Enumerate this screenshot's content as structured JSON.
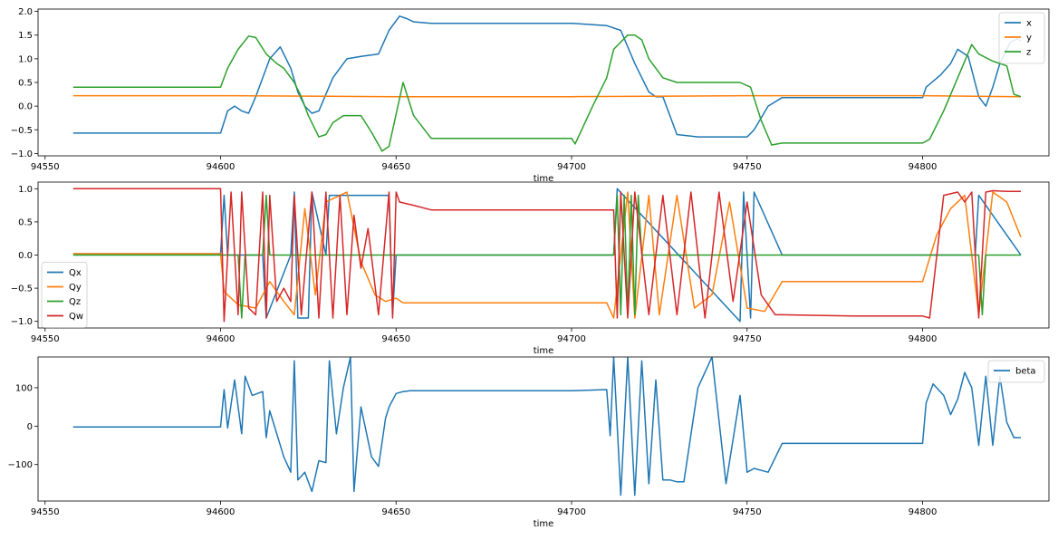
{
  "chart_data": [
    {
      "type": "line",
      "xlabel": "time",
      "ylabel": "",
      "xlim": [
        94548,
        94836
      ],
      "ylim": [
        -1.05,
        2.05
      ],
      "xticks": [
        94550,
        94600,
        94650,
        94700,
        94750,
        94800
      ],
      "xtick_labels": [
        "94550",
        "94600",
        "94650",
        "94700",
        "94750",
        "94800"
      ],
      "yticks": [
        -1.0,
        -0.5,
        0.0,
        0.5,
        1.0,
        1.5,
        2.0
      ],
      "ytick_labels": [
        "−1.0",
        "−0.5",
        "0.0",
        "0.5",
        "1.0",
        "1.5",
        "2.0"
      ],
      "legend_position": "top-right",
      "grid": false,
      "series": [
        {
          "name": "x",
          "color": "#1f77b4",
          "x": [
            94558,
            94600,
            94602,
            94604,
            94606,
            94608,
            94610,
            94614,
            94617,
            94620,
            94622,
            94624,
            94626,
            94628,
            94632,
            94636,
            94640,
            94645,
            94648,
            94651,
            94653,
            94655,
            94660,
            94680,
            94700,
            94710,
            94714,
            94718,
            94722,
            94724,
            94726,
            94730,
            94736,
            94742,
            94750,
            94752,
            94756,
            94760,
            94780,
            94800,
            94801,
            94805,
            94808,
            94810,
            94813,
            94816,
            94818,
            94820,
            94822,
            94825,
            94827,
            94828
          ],
          "y": [
            -0.57,
            -0.57,
            -0.1,
            0.0,
            -0.1,
            -0.15,
            0.2,
            1.0,
            1.25,
            0.8,
            0.3,
            0.0,
            -0.15,
            -0.1,
            0.6,
            1.0,
            1.05,
            1.1,
            1.6,
            1.9,
            1.85,
            1.78,
            1.75,
            1.75,
            1.75,
            1.7,
            1.6,
            0.9,
            0.3,
            0.2,
            0.2,
            -0.6,
            -0.65,
            -0.65,
            -0.65,
            -0.5,
            0.0,
            0.18,
            0.18,
            0.18,
            0.4,
            0.65,
            0.9,
            1.2,
            1.05,
            0.2,
            0.0,
            0.4,
            0.9,
            1.35,
            1.42,
            1.38
          ]
        },
        {
          "name": "y",
          "color": "#ff7f0e",
          "x": [
            94558,
            94600,
            94650,
            94700,
            94750,
            94800,
            94828
          ],
          "y": [
            0.22,
            0.22,
            0.2,
            0.2,
            0.22,
            0.22,
            0.2
          ]
        },
        {
          "name": "z",
          "color": "#2ca02c",
          "x": [
            94558,
            94600,
            94602,
            94605,
            94608,
            94610,
            94613,
            94616,
            94618,
            94621,
            94623,
            94625,
            94628,
            94630,
            94632,
            94635,
            94640,
            94643,
            94646,
            94648,
            94652,
            94655,
            94660,
            94680,
            94700,
            94701,
            94706,
            94710,
            94712,
            94716,
            94718,
            94720,
            94722,
            94726,
            94730,
            94740,
            94748,
            94751,
            94754,
            94757,
            94760,
            94780,
            94800,
            94802,
            94806,
            94810,
            94814,
            94816,
            94820,
            94824,
            94826,
            94828
          ],
          "y": [
            0.4,
            0.4,
            0.8,
            1.2,
            1.48,
            1.45,
            1.1,
            0.9,
            0.8,
            0.5,
            0.2,
            -0.2,
            -0.65,
            -0.6,
            -0.35,
            -0.2,
            -0.2,
            -0.55,
            -0.95,
            -0.85,
            0.5,
            -0.2,
            -0.68,
            -0.68,
            -0.68,
            -0.8,
            0.0,
            0.6,
            1.2,
            1.5,
            1.5,
            1.4,
            1.0,
            0.6,
            0.5,
            0.5,
            0.5,
            0.4,
            -0.3,
            -0.82,
            -0.78,
            -0.78,
            -0.78,
            -0.7,
            -0.1,
            0.6,
            1.3,
            1.1,
            0.95,
            0.85,
            0.25,
            0.2
          ]
        }
      ]
    },
    {
      "type": "line",
      "xlabel": "time",
      "ylabel": "",
      "xlim": [
        94548,
        94836
      ],
      "ylim": [
        -1.1,
        1.1
      ],
      "xticks": [
        94550,
        94600,
        94650,
        94700,
        94750,
        94800
      ],
      "xtick_labels": [
        "94550",
        "94600",
        "94650",
        "94700",
        "94750",
        "94800"
      ],
      "yticks": [
        -1.0,
        -0.5,
        0.0,
        0.5,
        1.0
      ],
      "ytick_labels": [
        "−1.0",
        "−0.5",
        "0.0",
        "0.5",
        "1.0"
      ],
      "legend_position": "center-left",
      "grid": false,
      "series": [
        {
          "name": "Qx",
          "color": "#1f77b4",
          "x": [
            94558,
            94600,
            94601,
            94602,
            94612,
            94613,
            94620,
            94621,
            94622,
            94625,
            94626,
            94630,
            94631,
            94648,
            94649,
            94650,
            94700,
            94712,
            94713,
            94748,
            94749,
            94751,
            94752,
            94760,
            94800,
            94815,
            94816,
            94828
          ],
          "y": [
            0.02,
            0.02,
            0.9,
            0.0,
            0.0,
            -0.95,
            0.0,
            0.95,
            -0.95,
            -0.95,
            0.95,
            0.0,
            0.9,
            0.9,
            -0.9,
            0.0,
            0.0,
            0.0,
            1.0,
            -1.0,
            0.95,
            -0.95,
            0.95,
            0.0,
            0.0,
            0.0,
            0.9,
            0.0
          ]
        },
        {
          "name": "Qy",
          "color": "#ff7f0e",
          "x": [
            94558,
            94600,
            94601,
            94605,
            94610,
            94614,
            94618,
            94621,
            94624,
            94627,
            94630,
            94636,
            94640,
            94644,
            94647,
            94650,
            94652,
            94660,
            94700,
            94710,
            94712,
            94716,
            94718,
            94722,
            94725,
            94730,
            94735,
            94740,
            94745,
            94750,
            94755,
            94760,
            94780,
            94800,
            94804,
            94808,
            94812,
            94816,
            94820,
            94824,
            94828
          ],
          "y": [
            0.02,
            0.02,
            -0.55,
            -0.75,
            -0.8,
            -0.4,
            -0.7,
            -0.9,
            0.7,
            -0.6,
            0.8,
            0.95,
            -0.1,
            -0.6,
            -0.7,
            -0.65,
            -0.72,
            -0.72,
            -0.72,
            -0.72,
            -0.95,
            0.95,
            -0.95,
            0.9,
            -0.9,
            0.9,
            -0.8,
            -0.6,
            0.8,
            -0.8,
            -0.85,
            -0.4,
            -0.4,
            -0.4,
            0.3,
            0.7,
            0.9,
            -0.9,
            0.95,
            0.8,
            0.27
          ]
        },
        {
          "name": "Qz",
          "color": "#2ca02c",
          "x": [
            94558,
            94600,
            94605,
            94606,
            94607,
            94612,
            94613,
            94614,
            94700,
            94712,
            94713,
            94714,
            94715,
            94716,
            94717,
            94718,
            94719,
            94720,
            94760,
            94816,
            94817,
            94818,
            94828
          ],
          "y": [
            0.0,
            0.0,
            0.0,
            -0.95,
            0.0,
            0.0,
            0.9,
            0.0,
            0.0,
            0.0,
            0.9,
            -0.9,
            0.9,
            -0.9,
            0.9,
            -0.9,
            0.9,
            0.0,
            0.0,
            0.0,
            -0.9,
            0.0,
            0.0
          ]
        },
        {
          "name": "Qw",
          "color": "#d62728",
          "x": [
            94558,
            94600,
            94601,
            94603,
            94605,
            94606,
            94608,
            94610,
            94612,
            94613,
            94614,
            94616,
            94618,
            94620,
            94621,
            94623,
            94626,
            94628,
            94630,
            94632,
            94634,
            94636,
            94638,
            94640,
            94642,
            94645,
            94648,
            94649,
            94650,
            94651,
            94655,
            94660,
            94700,
            94712,
            94713,
            94714,
            94716,
            94718,
            94722,
            94726,
            94730,
            94734,
            94738,
            94742,
            94746,
            94750,
            94754,
            94758,
            94760,
            94780,
            94800,
            94802,
            94806,
            94810,
            94812,
            94814,
            94816,
            94818,
            94820,
            94824,
            94828
          ],
          "y": [
            1.0,
            1.0,
            -1.0,
            0.95,
            -0.9,
            0.95,
            -0.8,
            -0.9,
            0.95,
            -0.95,
            0.9,
            -0.7,
            -0.5,
            -0.7,
            0.9,
            -0.9,
            0.95,
            -0.95,
            0.95,
            -0.95,
            0.9,
            -0.9,
            0.6,
            -0.2,
            0.4,
            -0.9,
            0.95,
            -0.95,
            0.95,
            0.8,
            0.75,
            0.68,
            0.68,
            0.68,
            -0.95,
            0.95,
            -0.95,
            0.95,
            -0.9,
            0.9,
            -0.9,
            0.95,
            -0.95,
            0.95,
            -0.7,
            0.8,
            -0.6,
            -0.9,
            -0.9,
            -0.92,
            -0.92,
            -0.95,
            0.9,
            0.95,
            0.8,
            0.95,
            -0.95,
            0.95,
            0.97,
            0.96,
            0.96
          ]
        }
      ]
    },
    {
      "type": "line",
      "xlabel": "time",
      "ylabel": "",
      "xlim": [
        94548,
        94836
      ],
      "ylim": [
        -195,
        180
      ],
      "xticks": [
        94550,
        94600,
        94650,
        94700,
        94750,
        94800
      ],
      "xtick_labels": [
        "94550",
        "94600",
        "94650",
        "94700",
        "94750",
        "94800"
      ],
      "yticks": [
        -100,
        0,
        100
      ],
      "ytick_labels": [
        "−100",
        "0",
        "100"
      ],
      "legend_position": "top-right",
      "grid": false,
      "series": [
        {
          "name": "beta",
          "color": "#1f77b4",
          "x": [
            94558,
            94600,
            94601,
            94602,
            94604,
            94606,
            94607,
            94609,
            94612,
            94613,
            94614,
            94618,
            94620,
            94621,
            94622,
            94624,
            94626,
            94628,
            94630,
            94631,
            94633,
            94635,
            94637,
            94638,
            94640,
            94643,
            94645,
            94647,
            94648,
            94650,
            94652,
            94654,
            94660,
            94700,
            94710,
            94711,
            94712,
            94714,
            94716,
            94718,
            94720,
            94722,
            94724,
            94726,
            94728,
            94730,
            94732,
            94736,
            94740,
            94744,
            94748,
            94750,
            94752,
            94756,
            94760,
            94780,
            94800,
            94801,
            94803,
            94806,
            94808,
            94810,
            94812,
            94814,
            94816,
            94818,
            94820,
            94822,
            94824,
            94826,
            94828
          ],
          "y": [
            -2,
            -2,
            95,
            -5,
            120,
            -20,
            130,
            80,
            90,
            -30,
            40,
            -80,
            -120,
            170,
            -140,
            -120,
            -170,
            -90,
            -95,
            170,
            -20,
            100,
            180,
            -170,
            50,
            -80,
            -105,
            20,
            50,
            85,
            90,
            92,
            92,
            92,
            95,
            -25,
            180,
            -180,
            180,
            -180,
            170,
            -150,
            120,
            -140,
            -140,
            -145,
            -145,
            100,
            180,
            -150,
            80,
            -120,
            -110,
            -120,
            -45,
            -45,
            -45,
            60,
            110,
            80,
            30,
            70,
            140,
            100,
            -50,
            130,
            -50,
            130,
            10,
            -30,
            -30
          ]
        }
      ]
    }
  ]
}
